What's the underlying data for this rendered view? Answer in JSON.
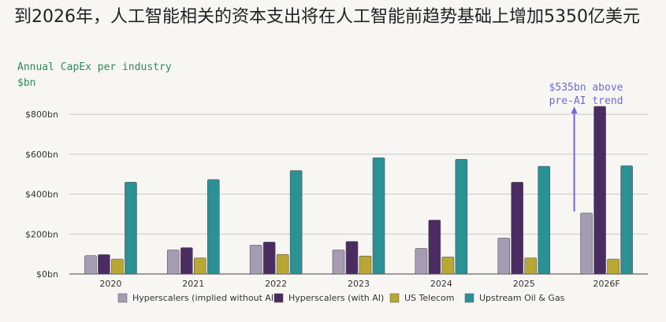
{
  "header": {
    "title": "到2026年，人工智能相关的资本支出将在人工智能前趋势基础上增加5350亿美元",
    "subtitle": "Annual CapEx per industry",
    "unit": "$bn"
  },
  "chart_data": {
    "type": "bar",
    "categories": [
      "2020",
      "2021",
      "2022",
      "2023",
      "2024",
      "2025",
      "2026F"
    ],
    "series": [
      {
        "name": "Hyperscalers (implied without AI)",
        "color": "#a59bb3",
        "values": [
          92,
          120,
          145,
          120,
          128,
          180,
          305
        ]
      },
      {
        "name": "Hyperscalers (with AI)",
        "color": "#4a2c62",
        "values": [
          97,
          132,
          160,
          163,
          270,
          460,
          840
        ]
      },
      {
        "name": "US Telecom",
        "color": "#b8a833",
        "values": [
          75,
          80,
          98,
          90,
          85,
          80,
          75
        ]
      },
      {
        "name": "Upstream Oil & Gas",
        "color": "#2a9195",
        "values": [
          460,
          473,
          518,
          582,
          575,
          540,
          542
        ]
      }
    ],
    "yticks": [
      "$0bn",
      "$200bn",
      "$400bn",
      "$600bn",
      "$800bn"
    ],
    "ytick_values": [
      0,
      200,
      400,
      600,
      800
    ],
    "ylim": [
      0,
      860
    ],
    "annotation": {
      "lines": [
        "$535bn above",
        "pre-AI trend"
      ],
      "category": "2026F",
      "from_value": 305,
      "to_value": 840,
      "color": "#6b6bd6"
    },
    "legend_position": "bottom",
    "grid": "horizontal"
  }
}
